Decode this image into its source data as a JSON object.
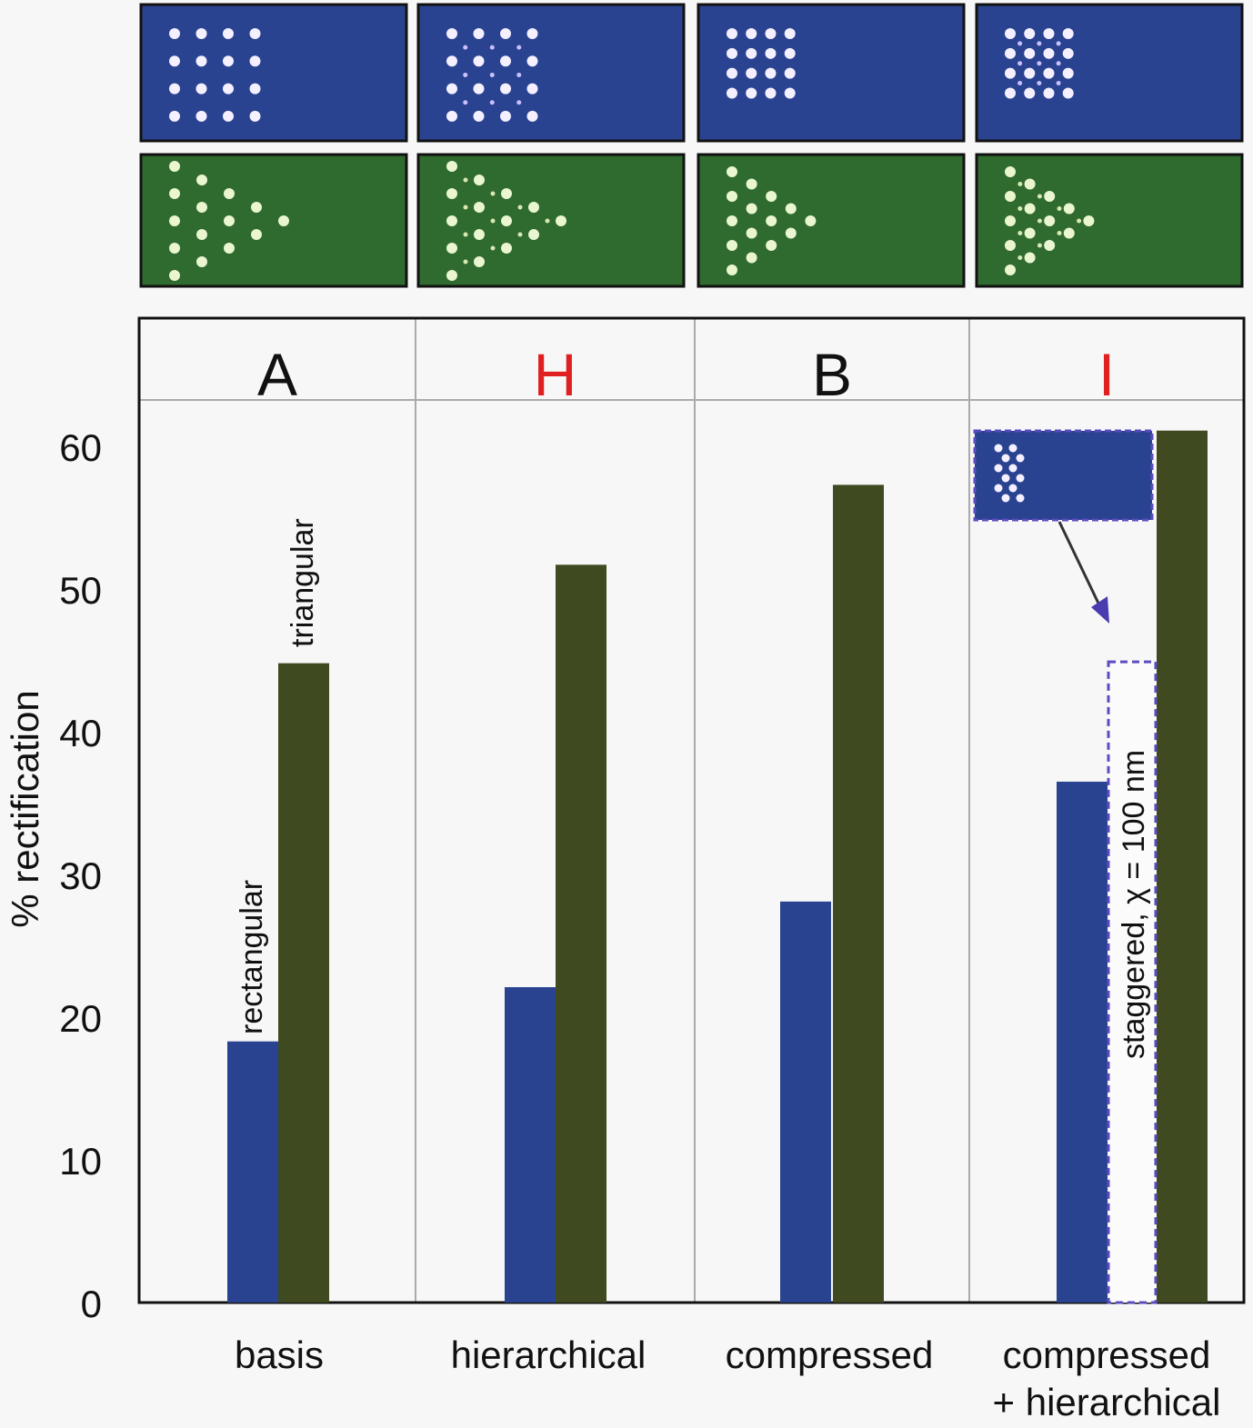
{
  "chart_data": {
    "type": "bar",
    "ylabel": "% rectification",
    "ylim": [
      0,
      60
    ],
    "yticks": [
      0,
      10,
      20,
      30,
      40,
      50,
      60
    ],
    "grid": false,
    "categories": [
      "basis",
      "hierarchical",
      "compressed",
      "compressed + hierarchical"
    ],
    "category_lines": [
      [
        "basis"
      ],
      [
        "hierarchical"
      ],
      [
        "compressed"
      ],
      [
        "compressed",
        "+ hierarchical"
      ]
    ],
    "panel_letters": [
      {
        "text": "A",
        "color": "#111111"
      },
      {
        "text": "H",
        "color": "#e02020"
      },
      {
        "text": "B",
        "color": "#111111"
      },
      {
        "text": "I",
        "color": "#e02020"
      }
    ],
    "series": [
      {
        "name": "rectangular",
        "color": "#2a4390",
        "values": [
          18.3,
          22.1,
          28.1,
          36.5
        ]
      },
      {
        "name": "triangular",
        "color": "#3f4a20",
        "values": [
          44.8,
          51.7,
          57.3,
          61.1
        ]
      }
    ],
    "extra_bar": {
      "category": "compressed + hierarchical",
      "label": "staggered, χ = 100 nm",
      "value": 44.9,
      "style": "dashed-outline",
      "outline_color": "#5a4cc0"
    },
    "bar_labels": [
      "rectangular",
      "triangular"
    ]
  },
  "colors": {
    "rect_panel": "#2a4390",
    "tri_panel": "#2f6a2f"
  }
}
